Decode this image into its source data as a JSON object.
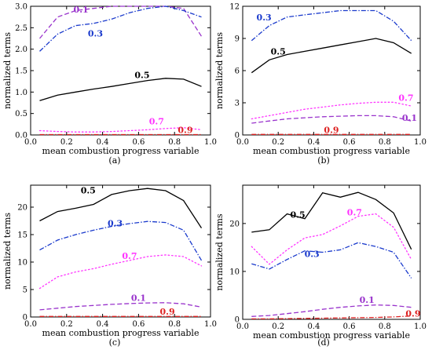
{
  "chart_data": [
    {
      "type": "line",
      "caption": "(a)",
      "xlabel": "mean combustion progress variable",
      "ylabel": "normalized terms",
      "xlim": [
        0,
        1
      ],
      "ylim": [
        0,
        3
      ],
      "xticks": [
        "0.0",
        "0.2",
        "0.4",
        "0.6",
        "0.8",
        "1.0"
      ],
      "yticks": [
        "0.0",
        "0.5",
        "1.0",
        "1.5",
        "2.0",
        "2.5",
        "3.0"
      ],
      "xtick_values": [
        0,
        0.2,
        0.4,
        0.6,
        0.8,
        1.0
      ],
      "ytick_values": [
        0,
        0.5,
        1.0,
        1.5,
        2.0,
        2.5,
        3.0
      ],
      "series": [
        {
          "name": "0.1",
          "color": "#9933cc",
          "style": "dash-long",
          "x": [
            0.05,
            0.15,
            0.25,
            0.35,
            0.45,
            0.55,
            0.65,
            0.75,
            0.85,
            0.95
          ],
          "y": [
            2.25,
            2.75,
            2.9,
            2.95,
            3.0,
            3.0,
            3.0,
            3.0,
            2.95,
            2.3
          ],
          "label_pos": [
            0.28,
            2.85
          ]
        },
        {
          "name": "0.3",
          "color": "#1a3acc",
          "style": "dashdot",
          "x": [
            0.05,
            0.15,
            0.25,
            0.35,
            0.45,
            0.55,
            0.65,
            0.75,
            0.85,
            0.95
          ],
          "y": [
            1.95,
            2.35,
            2.55,
            2.6,
            2.7,
            2.85,
            2.95,
            3.0,
            2.9,
            2.75
          ],
          "label_pos": [
            0.36,
            2.3
          ]
        },
        {
          "name": "0.5",
          "color": "#000000",
          "style": "solid",
          "x": [
            0.05,
            0.15,
            0.25,
            0.35,
            0.45,
            0.55,
            0.65,
            0.75,
            0.85,
            0.95
          ],
          "y": [
            0.8,
            0.93,
            1.0,
            1.07,
            1.13,
            1.2,
            1.27,
            1.32,
            1.3,
            1.13
          ],
          "label_pos": [
            0.62,
            1.33
          ]
        },
        {
          "name": "0.7",
          "color": "#ff33ff",
          "style": "dotted",
          "x": [
            0.05,
            0.15,
            0.25,
            0.35,
            0.45,
            0.55,
            0.65,
            0.75,
            0.85,
            0.95
          ],
          "y": [
            0.1,
            0.08,
            0.07,
            0.07,
            0.08,
            0.1,
            0.12,
            0.15,
            0.17,
            0.12
          ],
          "label_pos": [
            0.7,
            0.25
          ]
        },
        {
          "name": "0.9",
          "color": "#dd2222",
          "style": "dashdot",
          "x": [
            0.05,
            0.15,
            0.25,
            0.35,
            0.45,
            0.55,
            0.65,
            0.75,
            0.85,
            0.95
          ],
          "y": [
            0.01,
            0.01,
            0.01,
            0.01,
            0.01,
            0.01,
            0.01,
            0.01,
            0.01,
            0.01
          ],
          "label_pos": [
            0.86,
            0.05
          ]
        }
      ]
    },
    {
      "type": "line",
      "caption": "(b)",
      "xlabel": "mean combustion progress variable",
      "ylabel": "normalized terms",
      "xlim": [
        0,
        1
      ],
      "ylim": [
        0,
        12
      ],
      "xticks": [
        "0.0",
        "0.2",
        "0.4",
        "0.6",
        "0.8",
        "1.0"
      ],
      "yticks": [
        "0",
        "3",
        "6",
        "9",
        "12"
      ],
      "xtick_values": [
        0,
        0.2,
        0.4,
        0.6,
        0.8,
        1.0
      ],
      "ytick_values": [
        0,
        3,
        6,
        9,
        12
      ],
      "series": [
        {
          "name": "0.3",
          "color": "#1a3acc",
          "style": "dashdot",
          "x": [
            0.05,
            0.15,
            0.25,
            0.35,
            0.45,
            0.55,
            0.65,
            0.75,
            0.85,
            0.95
          ],
          "y": [
            8.8,
            10.2,
            11.0,
            11.2,
            11.4,
            11.6,
            11.6,
            11.6,
            10.6,
            8.8
          ],
          "label_pos": [
            0.12,
            10.7
          ]
        },
        {
          "name": "0.5",
          "color": "#000000",
          "style": "solid",
          "x": [
            0.05,
            0.15,
            0.25,
            0.35,
            0.45,
            0.55,
            0.65,
            0.75,
            0.85,
            0.95
          ],
          "y": [
            5.8,
            7.0,
            7.5,
            7.8,
            8.1,
            8.4,
            8.7,
            9.0,
            8.6,
            7.6
          ],
          "label_pos": [
            0.2,
            7.5
          ]
        },
        {
          "name": "0.7",
          "color": "#ff33ff",
          "style": "dotted",
          "x": [
            0.05,
            0.15,
            0.25,
            0.35,
            0.45,
            0.55,
            0.65,
            0.75,
            0.85,
            0.95
          ],
          "y": [
            1.5,
            1.8,
            2.1,
            2.4,
            2.6,
            2.8,
            2.95,
            3.05,
            3.05,
            2.7
          ],
          "label_pos": [
            0.92,
            3.2
          ]
        },
        {
          "name": "0.1",
          "color": "#9933cc",
          "style": "dash-long",
          "x": [
            0.05,
            0.15,
            0.25,
            0.35,
            0.45,
            0.55,
            0.65,
            0.75,
            0.85,
            0.95
          ],
          "y": [
            1.1,
            1.3,
            1.5,
            1.6,
            1.7,
            1.75,
            1.8,
            1.8,
            1.7,
            1.3
          ],
          "label_pos": [
            0.94,
            1.3
          ]
        },
        {
          "name": "0.9",
          "color": "#dd2222",
          "style": "dashdot",
          "x": [
            0.05,
            0.15,
            0.25,
            0.35,
            0.45,
            0.55,
            0.65,
            0.75,
            0.85,
            0.95
          ],
          "y": [
            0.05,
            0.05,
            0.05,
            0.05,
            0.05,
            0.05,
            0.05,
            0.05,
            0.05,
            0.05
          ],
          "label_pos": [
            0.5,
            0.2
          ]
        }
      ]
    },
    {
      "type": "line",
      "caption": "(c)",
      "xlabel": "mean combustion progress variable",
      "ylabel": "normalized terms",
      "xlim": [
        0,
        1
      ],
      "ylim": [
        0,
        24
      ],
      "xticks": [
        "0.0",
        "0.2",
        "0.4",
        "0.6",
        "0.8",
        "1.0"
      ],
      "yticks": [
        "0",
        "5",
        "10",
        "15",
        "20"
      ],
      "xtick_values": [
        0,
        0.2,
        0.4,
        0.6,
        0.8,
        1.0
      ],
      "ytick_values": [
        0,
        5,
        10,
        15,
        20
      ],
      "series": [
        {
          "name": "0.5",
          "color": "#000000",
          "style": "solid",
          "x": [
            0.05,
            0.15,
            0.25,
            0.35,
            0.45,
            0.55,
            0.65,
            0.75,
            0.85,
            0.95
          ],
          "y": [
            17.5,
            19.2,
            19.8,
            20.5,
            22.3,
            23.0,
            23.4,
            23.0,
            21.2,
            16.2
          ],
          "label_pos": [
            0.32,
            22.5
          ]
        },
        {
          "name": "0.3",
          "color": "#1a3acc",
          "style": "dashdot",
          "x": [
            0.05,
            0.15,
            0.25,
            0.35,
            0.45,
            0.55,
            0.65,
            0.75,
            0.85,
            0.95
          ],
          "y": [
            12.2,
            14.0,
            15.0,
            15.8,
            16.5,
            17.0,
            17.4,
            17.2,
            15.8,
            10.3
          ],
          "label_pos": [
            0.47,
            16.5
          ]
        },
        {
          "name": "0.7",
          "color": "#ff33ff",
          "style": "dotted",
          "x": [
            0.05,
            0.15,
            0.25,
            0.35,
            0.45,
            0.55,
            0.65,
            0.75,
            0.85,
            0.95
          ],
          "y": [
            5.2,
            7.3,
            8.2,
            8.8,
            9.6,
            10.3,
            11.0,
            11.3,
            11.0,
            9.3
          ],
          "label_pos": [
            0.55,
            10.6
          ]
        },
        {
          "name": "0.1",
          "color": "#9933cc",
          "style": "dash-long",
          "x": [
            0.05,
            0.15,
            0.25,
            0.35,
            0.45,
            0.55,
            0.65,
            0.75,
            0.85,
            0.95
          ],
          "y": [
            1.3,
            1.6,
            1.9,
            2.1,
            2.3,
            2.45,
            2.55,
            2.6,
            2.4,
            1.8
          ],
          "label_pos": [
            0.6,
            2.9
          ]
        },
        {
          "name": "0.9",
          "color": "#dd2222",
          "style": "dashdot",
          "x": [
            0.05,
            0.15,
            0.25,
            0.35,
            0.45,
            0.55,
            0.65,
            0.75,
            0.85,
            0.95
          ],
          "y": [
            0.1,
            0.1,
            0.1,
            0.1,
            0.1,
            0.1,
            0.1,
            0.1,
            0.1,
            0.1
          ],
          "label_pos": [
            0.76,
            0.4
          ]
        }
      ]
    },
    {
      "type": "line",
      "caption": "(d)",
      "xlabel": "mean combustion progress variable",
      "ylabel": "normalized terms",
      "xlim": [
        0,
        1
      ],
      "ylim": [
        0,
        28
      ],
      "xticks": [
        "0.0",
        "0.2",
        "0.4",
        "0.6",
        "0.8",
        "1.0"
      ],
      "yticks": [
        "0",
        "10",
        "20"
      ],
      "xtick_values": [
        0,
        0.2,
        0.4,
        0.6,
        0.8,
        1.0
      ],
      "ytick_values": [
        0,
        10,
        20
      ],
      "series": [
        {
          "name": "0.5",
          "color": "#000000",
          "style": "solid",
          "x": [
            0.05,
            0.15,
            0.25,
            0.35,
            0.45,
            0.55,
            0.65,
            0.75,
            0.85,
            0.95
          ],
          "y": [
            18.2,
            18.7,
            22.0,
            21.0,
            26.4,
            25.5,
            26.5,
            25.0,
            22.2,
            14.6
          ],
          "label_pos": [
            0.31,
            21.2
          ]
        },
        {
          "name": "0.7",
          "color": "#ff33ff",
          "style": "dotted",
          "x": [
            0.05,
            0.15,
            0.25,
            0.35,
            0.45,
            0.55,
            0.65,
            0.75,
            0.85,
            0.95
          ],
          "y": [
            15.2,
            11.5,
            14.5,
            17.0,
            17.7,
            19.5,
            21.5,
            22.0,
            19.2,
            12.5
          ],
          "label_pos": [
            0.63,
            21.7
          ]
        },
        {
          "name": "0.3",
          "color": "#1a3acc",
          "style": "dashdot",
          "x": [
            0.05,
            0.15,
            0.25,
            0.35,
            0.45,
            0.55,
            0.65,
            0.75,
            0.85,
            0.95
          ],
          "y": [
            11.6,
            10.5,
            12.5,
            14.3,
            14.0,
            14.5,
            16.0,
            15.2,
            14.0,
            8.6
          ],
          "label_pos": [
            0.39,
            13.0
          ]
        },
        {
          "name": "0.1",
          "color": "#9933cc",
          "style": "dash-long",
          "x": [
            0.05,
            0.15,
            0.25,
            0.35,
            0.45,
            0.55,
            0.65,
            0.75,
            0.85,
            0.95
          ],
          "y": [
            0.6,
            0.8,
            1.2,
            1.6,
            2.1,
            2.5,
            2.8,
            3.0,
            2.9,
            2.5
          ],
          "label_pos": [
            0.7,
            3.4
          ]
        },
        {
          "name": "0.9",
          "color": "#dd2222",
          "style": "dashdot",
          "x": [
            0.05,
            0.15,
            0.25,
            0.35,
            0.45,
            0.55,
            0.65,
            0.75,
            0.85,
            0.95
          ],
          "y": [
            0.1,
            0.1,
            0.15,
            0.2,
            0.25,
            0.3,
            0.35,
            0.4,
            0.5,
            0.7
          ],
          "label_pos": [
            0.96,
            0.6
          ]
        }
      ]
    }
  ]
}
